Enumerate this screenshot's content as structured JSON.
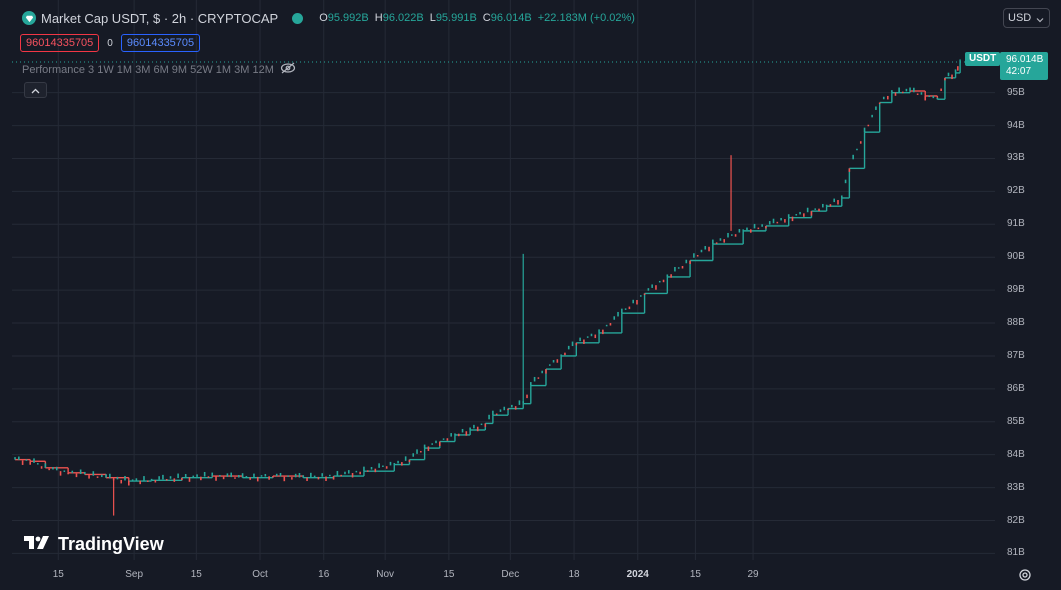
{
  "header": {
    "title": "Market Cap USDT, $ · 2h · CRYPTOCAP",
    "ohlc": [
      {
        "label": "O",
        "value": "95.992B"
      },
      {
        "label": "H",
        "value": "96.022B"
      },
      {
        "label": "L",
        "value": "95.991B"
      },
      {
        "label": "C",
        "value": "96.014B"
      }
    ],
    "change": "+22.183M (+0.02%)",
    "currency": "USD"
  },
  "price_tags": {
    "sell": "96014335705",
    "spread": "0",
    "buy": "96014335705"
  },
  "performance": {
    "label": "Performance",
    "periods": "3 1W 1M 3M 6M 9M 52W 1M 3M 12M"
  },
  "watermark": "TradingView",
  "last_price": {
    "symbol": "USDT",
    "value": "96.014B",
    "countdown": "42:07"
  },
  "colors": {
    "up": "#26a69a",
    "down": "#ef5350",
    "background": "#161a25",
    "grid": "#252a36"
  },
  "icons": {
    "logo": "tether-gem-icon",
    "eye": "eye-slash-icon",
    "collapse": "chevron-up-icon",
    "settings": "gear-icon"
  },
  "chart_data": {
    "type": "line",
    "title": "Market Cap USDT, $ · 2h · CRYPTOCAP",
    "xlabel": "",
    "ylabel": "",
    "ylim": [
      80.8,
      96.6
    ],
    "y_ticks": [
      "81B",
      "82B",
      "83B",
      "84B",
      "85B",
      "86B",
      "87B",
      "88B",
      "89B",
      "90B",
      "91B",
      "92B",
      "93B",
      "94B",
      "95B"
    ],
    "x_ticks": [
      "15",
      "Sep",
      "15",
      "Oct",
      "16",
      "Nov",
      "15",
      "Dec",
      "18",
      "2024",
      "15",
      "29"
    ],
    "grid": true,
    "series": [
      {
        "values": [
          [
            2023.59,
            83.85
          ],
          [
            2023.6,
            83.8
          ],
          [
            2023.61,
            83.6
          ],
          [
            2023.625,
            83.45
          ],
          [
            2023.636,
            83.4
          ],
          [
            2023.65,
            83.3
          ],
          [
            2023.665,
            83.2
          ],
          [
            2023.68,
            83.22
          ],
          [
            2023.7,
            83.3
          ],
          [
            2023.72,
            83.35
          ],
          [
            2023.74,
            83.3
          ],
          [
            2023.76,
            83.35
          ],
          [
            2023.78,
            83.3
          ],
          [
            2023.8,
            83.35
          ],
          [
            2023.82,
            83.5
          ],
          [
            2023.84,
            83.7
          ],
          [
            2023.85,
            83.85
          ],
          [
            2023.86,
            84.2
          ],
          [
            2023.87,
            84.4
          ],
          [
            2023.88,
            84.6
          ],
          [
            2023.89,
            84.75
          ],
          [
            2023.9,
            84.95
          ],
          [
            2023.905,
            85.2
          ],
          [
            2023.915,
            85.4
          ],
          [
            2023.925,
            85.55
          ],
          [
            2023.93,
            86.1
          ],
          [
            2023.94,
            86.6
          ],
          [
            2023.95,
            87.0
          ],
          [
            2023.96,
            87.4
          ],
          [
            2023.975,
            87.7
          ],
          [
            2023.99,
            88.3
          ],
          [
            2024.005,
            88.9
          ],
          [
            2024.02,
            89.4
          ],
          [
            2024.035,
            89.9
          ],
          [
            2024.05,
            90.4
          ],
          [
            2024.07,
            90.8
          ],
          [
            2024.085,
            90.95
          ],
          [
            2024.1,
            91.2
          ],
          [
            2024.115,
            91.4
          ],
          [
            2024.125,
            91.55
          ],
          [
            2024.135,
            91.8
          ],
          [
            2024.14,
            92.7
          ],
          [
            2024.15,
            93.8
          ],
          [
            2024.16,
            94.7
          ],
          [
            2024.168,
            95.0
          ],
          [
            2024.18,
            95.05
          ],
          [
            2024.19,
            94.9
          ],
          [
            2024.198,
            94.8
          ],
          [
            2024.203,
            95.45
          ],
          [
            2024.21,
            95.6
          ],
          [
            2024.213,
            96.01
          ]
        ]
      }
    ],
    "spikes": [
      {
        "x": 2023.655,
        "low": 82.15,
        "direction": "down"
      },
      {
        "x": 2023.925,
        "high": 90.1,
        "direction": "up"
      },
      {
        "x": 2024.062,
        "high": 93.1,
        "direction": "up"
      }
    ]
  }
}
